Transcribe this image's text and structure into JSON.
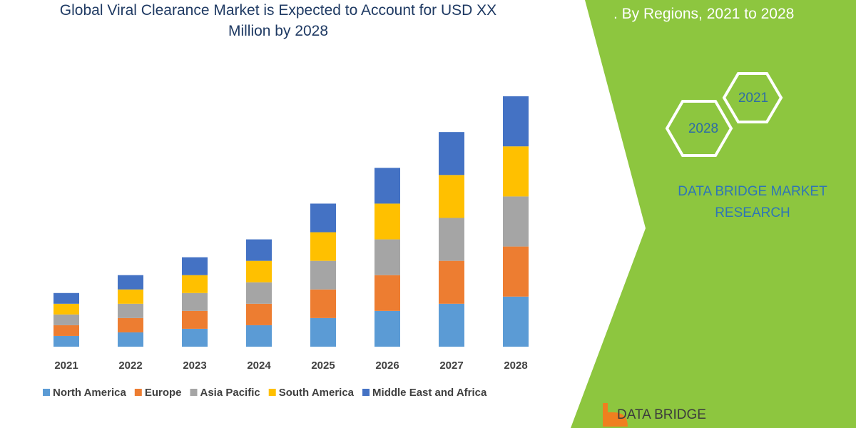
{
  "chart_data": {
    "type": "stacked-bar",
    "title": "Global Viral Clearance Market is Expected to Account for USD XX Million by 2028",
    "subtitle": ". By Regions, 2021 to 2028",
    "categories": [
      "2021",
      "2022",
      "2023",
      "2024",
      "2025",
      "2026",
      "2027",
      "2028"
    ],
    "series": [
      {
        "name": "North America",
        "color": "#5b9bd5",
        "values": [
          1.5,
          2,
          2.5,
          3,
          4,
          5,
          6,
          7
        ]
      },
      {
        "name": "Europe",
        "color": "#ed7d31",
        "values": [
          1.5,
          2,
          2.5,
          3,
          4,
          5,
          6,
          7
        ]
      },
      {
        "name": "Asia Pacific",
        "color": "#a5a5a5",
        "values": [
          1.5,
          2,
          2.5,
          3,
          4,
          5,
          6,
          7
        ]
      },
      {
        "name": "South America",
        "color": "#ffc000",
        "values": [
          1.5,
          2,
          2.5,
          3,
          4,
          5,
          6,
          7
        ]
      },
      {
        "name": "Middle East and Africa",
        "color": "#4472c4",
        "values": [
          1.5,
          2,
          2.5,
          3,
          4,
          5,
          6,
          7
        ]
      }
    ],
    "ylim": [
      0,
      35
    ]
  },
  "badges": {
    "start_year": "2021",
    "end_year": "2028"
  },
  "brand": {
    "name": "DATA BRIDGE MARKET RESEARCH",
    "logo_text": "DATA BRIDGE"
  }
}
